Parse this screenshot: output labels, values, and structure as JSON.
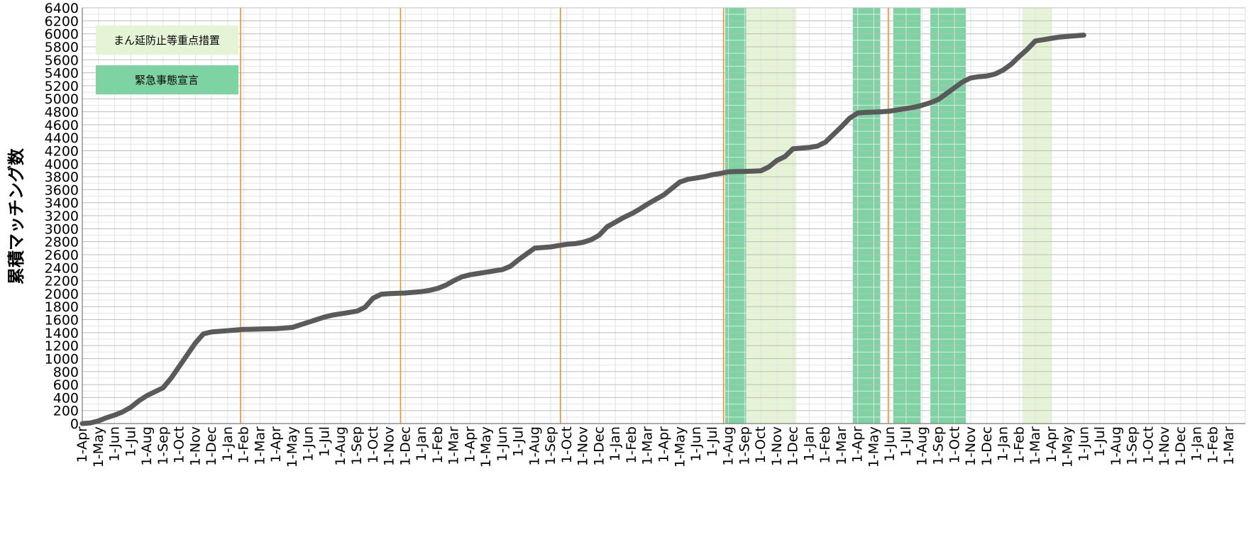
{
  "chart_data": {
    "type": "line",
    "title": "",
    "xlabel": "",
    "ylabel": "累積マッチング数",
    "ylim": [
      0,
      6400
    ],
    "ytick_step": 200,
    "grid": true,
    "legend_position": "top-left",
    "x_tick_labels": [
      "1-Apr",
      "1-May",
      "1-Jun",
      "1-Jul",
      "1-Aug",
      "1-Sep",
      "1-Oct",
      "1-Nov",
      "1-Dec",
      "1-Jan",
      "1-Feb",
      "1-Mar",
      "1-Apr",
      "1-May",
      "1-Jun",
      "1-Jul",
      "1-Aug",
      "1-Sep",
      "1-Oct",
      "1-Nov",
      "1-Dec",
      "1-Jan",
      "1-Feb",
      "1-Mar",
      "1-Apr",
      "1-May",
      "1-Jun",
      "1-Jul",
      "1-Aug",
      "1-Sep",
      "1-Oct",
      "1-Nov",
      "1-Dec",
      "1-Jan",
      "1-Feb",
      "1-Mar",
      "1-Apr",
      "1-May",
      "1-Jun",
      "1-Jul",
      "1-Aug",
      "1-Sep",
      "1-Oct",
      "1-Nov",
      "1-Dec",
      "1-Jan",
      "1-Feb",
      "1-Mar",
      "1-Apr",
      "1-May",
      "1-Jun",
      "1-Jul",
      "1-Aug",
      "1-Sep",
      "1-Oct",
      "1-Nov",
      "1-Dec",
      "1-Jan",
      "1-Feb",
      "1-Mar",
      "1-Apr",
      "1-May",
      "1-Jun",
      "1-Jul",
      "1-Aug",
      "1-Sep",
      "1-Oct",
      "1-Nov",
      "1-Dec",
      "1-Jan",
      "1-Feb",
      "1-Mar"
    ],
    "series": [
      {
        "color": "#5a5a5a",
        "points": [
          [
            0,
            0
          ],
          [
            0.5,
            10
          ],
          [
            1,
            40
          ],
          [
            1.5,
            90
          ],
          [
            2,
            130
          ],
          [
            2.5,
            180
          ],
          [
            3,
            250
          ],
          [
            3.5,
            350
          ],
          [
            4,
            430
          ],
          [
            4.5,
            490
          ],
          [
            5,
            550
          ],
          [
            5.5,
            700
          ],
          [
            6,
            880
          ],
          [
            6.5,
            1060
          ],
          [
            7,
            1240
          ],
          [
            7.5,
            1380
          ],
          [
            8,
            1410
          ],
          [
            8.5,
            1420
          ],
          [
            9,
            1430
          ],
          [
            9.5,
            1440
          ],
          [
            10,
            1450
          ],
          [
            10.5,
            1452
          ],
          [
            11,
            1455
          ],
          [
            11.5,
            1458
          ],
          [
            12,
            1460
          ],
          [
            12.5,
            1470
          ],
          [
            13,
            1480
          ],
          [
            13.5,
            1520
          ],
          [
            14,
            1560
          ],
          [
            14.5,
            1600
          ],
          [
            15,
            1640
          ],
          [
            15.5,
            1670
          ],
          [
            16,
            1690
          ],
          [
            16.5,
            1710
          ],
          [
            17,
            1730
          ],
          [
            17.5,
            1790
          ],
          [
            18,
            1930
          ],
          [
            18.5,
            1990
          ],
          [
            19,
            2000
          ],
          [
            19.5,
            2005
          ],
          [
            20,
            2010
          ],
          [
            20.5,
            2020
          ],
          [
            21,
            2030
          ],
          [
            21.5,
            2050
          ],
          [
            22,
            2080
          ],
          [
            22.5,
            2130
          ],
          [
            23,
            2200
          ],
          [
            23.5,
            2260
          ],
          [
            24,
            2290
          ],
          [
            24.5,
            2310
          ],
          [
            25,
            2330
          ],
          [
            25.5,
            2350
          ],
          [
            26,
            2370
          ],
          [
            26.5,
            2420
          ],
          [
            27,
            2520
          ],
          [
            27.5,
            2610
          ],
          [
            28,
            2700
          ],
          [
            28.5,
            2710
          ],
          [
            29,
            2720
          ],
          [
            29.5,
            2740
          ],
          [
            30,
            2760
          ],
          [
            30.5,
            2770
          ],
          [
            31,
            2790
          ],
          [
            31.5,
            2830
          ],
          [
            32,
            2900
          ],
          [
            32.5,
            3030
          ],
          [
            33,
            3100
          ],
          [
            33.5,
            3170
          ],
          [
            34,
            3230
          ],
          [
            34.5,
            3300
          ],
          [
            35,
            3380
          ],
          [
            35.5,
            3450
          ],
          [
            36,
            3520
          ],
          [
            36.5,
            3620
          ],
          [
            37,
            3720
          ],
          [
            37.5,
            3760
          ],
          [
            38,
            3780
          ],
          [
            38.5,
            3800
          ],
          [
            39,
            3830
          ],
          [
            39.5,
            3850
          ],
          [
            40,
            3875
          ],
          [
            40.5,
            3880
          ],
          [
            41,
            3882
          ],
          [
            41.5,
            3885
          ],
          [
            42,
            3890
          ],
          [
            42.5,
            3950
          ],
          [
            43,
            4050
          ],
          [
            43.5,
            4110
          ],
          [
            44,
            4230
          ],
          [
            44.5,
            4240
          ],
          [
            45,
            4250
          ],
          [
            45.5,
            4270
          ],
          [
            46,
            4330
          ],
          [
            46.5,
            4450
          ],
          [
            47,
            4570
          ],
          [
            47.5,
            4700
          ],
          [
            48,
            4780
          ],
          [
            48.5,
            4790
          ],
          [
            49,
            4795
          ],
          [
            49.5,
            4800
          ],
          [
            50,
            4810
          ],
          [
            50.5,
            4830
          ],
          [
            51,
            4850
          ],
          [
            51.5,
            4870
          ],
          [
            52,
            4900
          ],
          [
            52.5,
            4940
          ],
          [
            53,
            4990
          ],
          [
            53.5,
            5080
          ],
          [
            54,
            5170
          ],
          [
            54.5,
            5260
          ],
          [
            55,
            5320
          ],
          [
            55.5,
            5340
          ],
          [
            56,
            5350
          ],
          [
            56.5,
            5380
          ],
          [
            57,
            5440
          ],
          [
            57.5,
            5530
          ],
          [
            58,
            5650
          ],
          [
            58.5,
            5760
          ],
          [
            59,
            5890
          ],
          [
            59.5,
            5910
          ],
          [
            60,
            5930
          ],
          [
            60.5,
            5950
          ],
          [
            61,
            5960
          ],
          [
            61.5,
            5970
          ],
          [
            62,
            5980
          ]
        ]
      }
    ],
    "vertical_lines": [
      9.8,
      19.7,
      29.6,
      39.7,
      49.9
    ],
    "vertical_line_color": "#f0922e",
    "shaded_periods": [
      {
        "type": "emergency",
        "x0": 39.8,
        "x1": 41.1
      },
      {
        "type": "manen",
        "x0": 41.1,
        "x1": 44.2
      },
      {
        "type": "emergency",
        "x0": 47.7,
        "x1": 49.4
      },
      {
        "type": "emergency",
        "x0": 50.2,
        "x1": 51.9
      },
      {
        "type": "emergency",
        "x0": 52.5,
        "x1": 54.7
      },
      {
        "type": "manen",
        "x0": 58.2,
        "x1": 60
      }
    ],
    "legend": [
      {
        "key": "manen",
        "label": "まん延防止等重点措置",
        "color": "#e6f4d6"
      },
      {
        "key": "emergency",
        "label": "緊急事態宣言",
        "color": "#7dd4a2"
      }
    ],
    "colors": {
      "emergency": "#7dd4a2",
      "manen": "#e6f4d6",
      "line": "#5a5a5a",
      "line_in_emergency": "#3f7f55"
    }
  }
}
